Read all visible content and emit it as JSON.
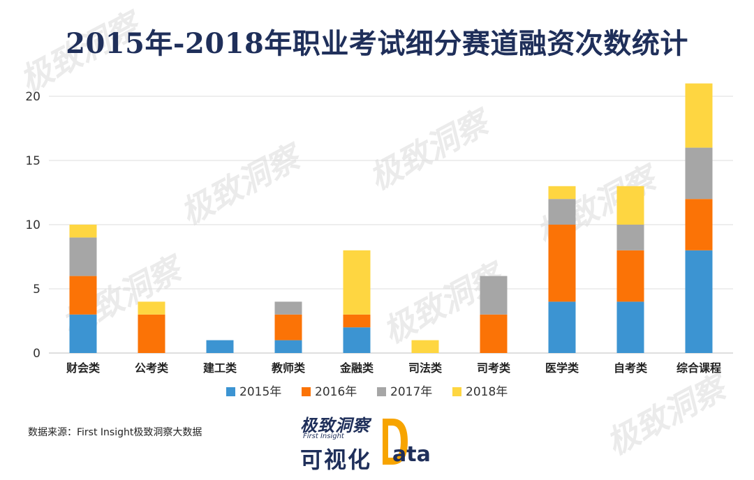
{
  "title": "2015年-2018年职业考试细分赛道融资次数统计",
  "source": "数据来源：First Insight极致洞察大数据",
  "brand": {
    "name": "极致洞察",
    "sub": "First Insight",
    "cn": "可视化",
    "data_word": "ata"
  },
  "watermark": "极致洞察",
  "chart_data": {
    "type": "bar",
    "stacked": true,
    "categories": [
      "财会类",
      "公考类",
      "建工类",
      "教师类",
      "金融类",
      "司法类",
      "司考类",
      "医学类",
      "自考类",
      "综合课程"
    ],
    "series": [
      {
        "name": "2015年",
        "color": "#3c94d2",
        "values": [
          3,
          0,
          1,
          1,
          2,
          0,
          0,
          4,
          4,
          8
        ]
      },
      {
        "name": "2016年",
        "color": "#fb7306",
        "values": [
          3,
          3,
          0,
          2,
          1,
          0,
          3,
          6,
          4,
          4
        ]
      },
      {
        "name": "2017年",
        "color": "#a6a6a6",
        "values": [
          3,
          0,
          0,
          1,
          0,
          0,
          3,
          2,
          2,
          4
        ]
      },
      {
        "name": "2018年",
        "color": "#fed641",
        "values": [
          1,
          1,
          0,
          0,
          5,
          1,
          0,
          1,
          3,
          5
        ]
      }
    ],
    "yticks": [
      0,
      5,
      10,
      15,
      20
    ],
    "ylim": [
      0,
      21
    ],
    "grid": true,
    "legend": "bottom"
  }
}
